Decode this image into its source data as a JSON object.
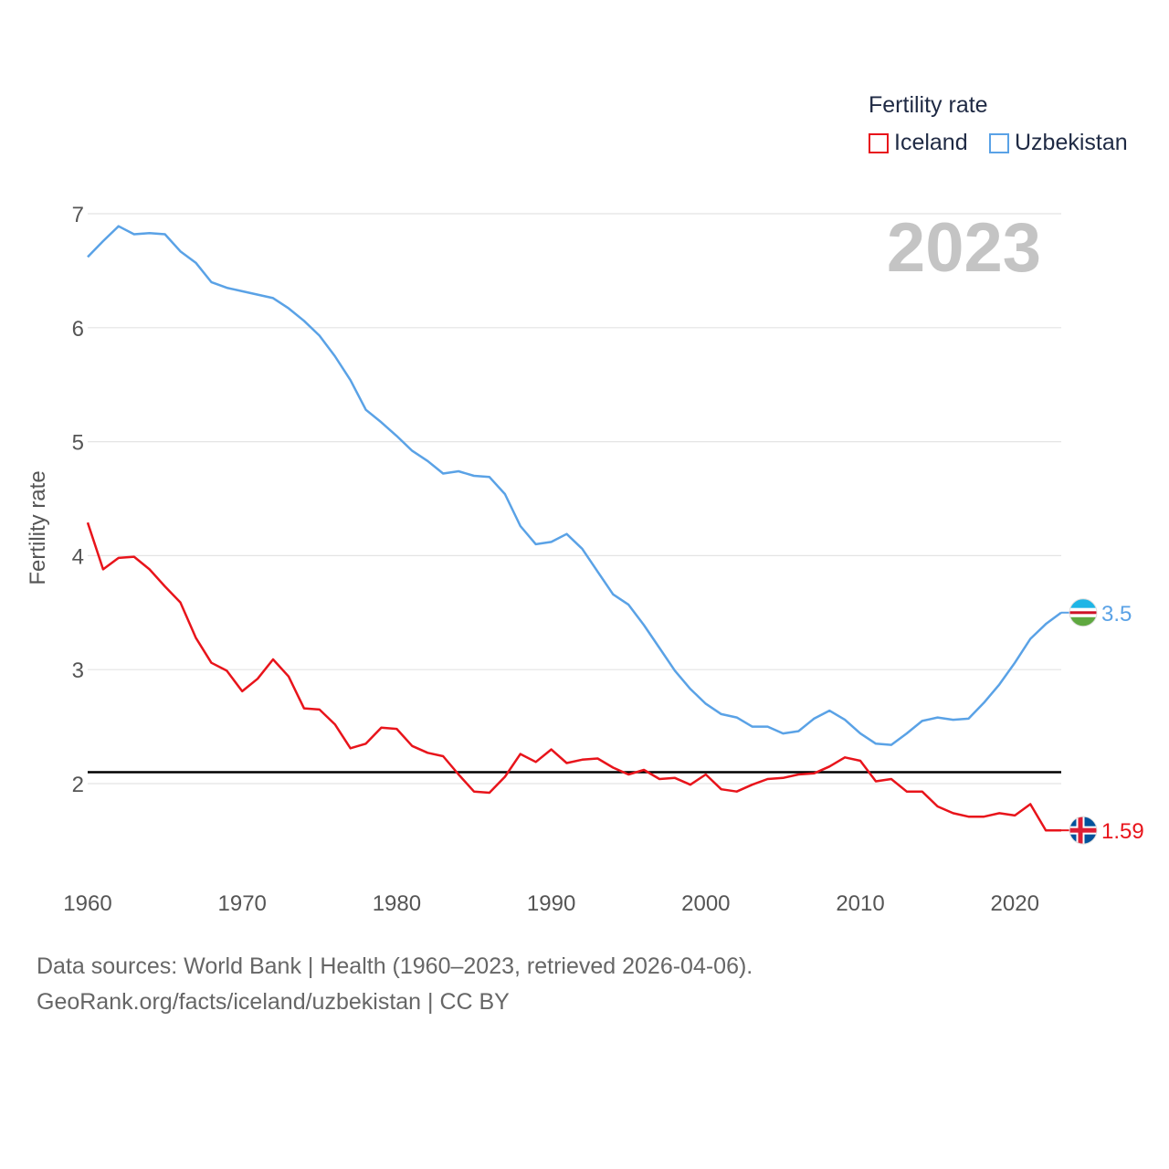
{
  "legend": {
    "title": "Fertility rate",
    "items": [
      {
        "label": "Iceland",
        "color": "#e8141b"
      },
      {
        "label": "Uzbekistan",
        "color": "#5aa2e6"
      }
    ]
  },
  "watermark_year": "2023",
  "footer": {
    "line1": "Data sources: World Bank | Health (1960–2023, retrieved 2026-04-06).",
    "line2": "GeoRank.org/facts/iceland/uzbekistan | CC BY"
  },
  "chart_data": {
    "type": "line",
    "title": "Fertility rate",
    "xlabel": "",
    "ylabel": "Fertility rate",
    "xlim": [
      1960,
      2023
    ],
    "ylim": [
      1.2,
      7.2
    ],
    "x_ticks": [
      1960,
      1970,
      1980,
      1990,
      2000,
      2010,
      2020
    ],
    "y_ticks": [
      2,
      3,
      4,
      5,
      6,
      7
    ],
    "grid": true,
    "reference_line": 2.1,
    "legend_position": "top-right",
    "series": [
      {
        "name": "Iceland",
        "color": "#e8141b",
        "end_label": "1.59",
        "x": [
          1960,
          1961,
          1962,
          1963,
          1964,
          1965,
          1966,
          1967,
          1968,
          1969,
          1970,
          1971,
          1972,
          1973,
          1974,
          1975,
          1976,
          1977,
          1978,
          1979,
          1980,
          1981,
          1982,
          1983,
          1984,
          1985,
          1986,
          1987,
          1988,
          1989,
          1990,
          1991,
          1992,
          1993,
          1994,
          1995,
          1996,
          1997,
          1998,
          1999,
          2000,
          2001,
          2002,
          2003,
          2004,
          2005,
          2006,
          2007,
          2008,
          2009,
          2010,
          2011,
          2012,
          2013,
          2014,
          2015,
          2016,
          2017,
          2018,
          2019,
          2020,
          2021,
          2022,
          2023
        ],
        "values": [
          4.29,
          3.88,
          3.98,
          3.99,
          3.88,
          3.73,
          3.59,
          3.28,
          3.06,
          2.99,
          2.81,
          2.92,
          3.09,
          2.94,
          2.66,
          2.65,
          2.52,
          2.31,
          2.35,
          2.49,
          2.48,
          2.33,
          2.27,
          2.24,
          2.08,
          1.93,
          1.92,
          2.06,
          2.26,
          2.19,
          2.3,
          2.18,
          2.21,
          2.22,
          2.14,
          2.08,
          2.12,
          2.04,
          2.05,
          1.99,
          2.08,
          1.95,
          1.93,
          1.99,
          2.04,
          2.05,
          2.08,
          2.09,
          2.15,
          2.23,
          2.2,
          2.02,
          2.04,
          1.93,
          1.93,
          1.8,
          1.74,
          1.71,
          1.71,
          1.74,
          1.72,
          1.82,
          1.59,
          1.59
        ]
      },
      {
        "name": "Uzbekistan",
        "color": "#5aa2e6",
        "end_label": "3.5",
        "x": [
          1960,
          1961,
          1962,
          1963,
          1964,
          1965,
          1966,
          1967,
          1968,
          1969,
          1970,
          1971,
          1972,
          1973,
          1974,
          1975,
          1976,
          1977,
          1978,
          1979,
          1980,
          1981,
          1982,
          1983,
          1984,
          1985,
          1986,
          1987,
          1988,
          1989,
          1990,
          1991,
          1992,
          1993,
          1994,
          1995,
          1996,
          1997,
          1998,
          1999,
          2000,
          2001,
          2002,
          2003,
          2004,
          2005,
          2006,
          2007,
          2008,
          2009,
          2010,
          2011,
          2012,
          2013,
          2014,
          2015,
          2016,
          2017,
          2018,
          2019,
          2020,
          2021,
          2022,
          2023
        ],
        "values": [
          6.62,
          6.76,
          6.89,
          6.82,
          6.83,
          6.82,
          6.67,
          6.57,
          6.4,
          6.35,
          6.32,
          6.29,
          6.26,
          6.17,
          6.06,
          5.93,
          5.75,
          5.54,
          5.28,
          5.17,
          5.05,
          4.92,
          4.83,
          4.72,
          4.74,
          4.7,
          4.69,
          4.54,
          4.26,
          4.1,
          4.12,
          4.19,
          4.06,
          3.86,
          3.66,
          3.57,
          3.39,
          3.19,
          2.99,
          2.83,
          2.7,
          2.61,
          2.58,
          2.5,
          2.5,
          2.44,
          2.46,
          2.57,
          2.64,
          2.56,
          2.44,
          2.35,
          2.34,
          2.44,
          2.55,
          2.58,
          2.56,
          2.57,
          2.71,
          2.87,
          3.06,
          3.27,
          3.4,
          3.5
        ]
      }
    ]
  }
}
